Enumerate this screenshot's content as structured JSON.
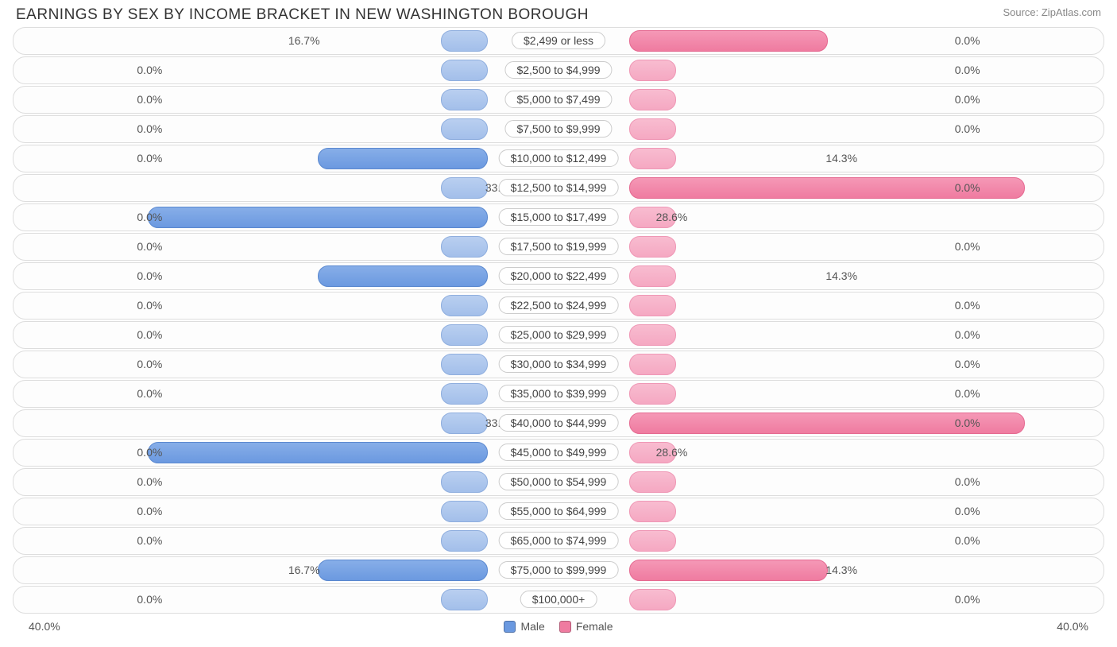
{
  "header": {
    "title": "EARNINGS BY SEX BY INCOME BRACKET IN NEW WASHINGTON BOROUGH",
    "source": "Source: ZipAtlas.com"
  },
  "chart": {
    "type": "diverging-bar",
    "axis_max_pct": 40.0,
    "axis_left_label": "40.0%",
    "axis_right_label": "40.0%",
    "center_offset_pct": 6.5,
    "min_bar_pct": 4.3,
    "colors": {
      "male_fill_top": "#87aee8",
      "male_fill_bottom": "#6b99e0",
      "male_border": "#5a88cf",
      "male_min_fill_top": "#b9cff0",
      "male_min_fill_bottom": "#a3bfea",
      "female_fill_top": "#f598b6",
      "female_fill_bottom": "#ef7ba0",
      "female_border": "#e56a91",
      "female_min_fill_top": "#f8bcd0",
      "female_min_fill_bottom": "#f5a8c2",
      "row_border": "#dddddd",
      "row_bg": "#fdfdfd",
      "text": "#555555",
      "label_border": "#cccccc"
    },
    "legend": {
      "male": "Male",
      "female": "Female"
    },
    "rows": [
      {
        "category": "$2,499 or less",
        "male_pct": 0.0,
        "female_pct": 16.7,
        "male_label": "0.0%",
        "female_label": "16.7%"
      },
      {
        "category": "$2,500 to $4,999",
        "male_pct": 0.0,
        "female_pct": 0.0,
        "male_label": "0.0%",
        "female_label": "0.0%"
      },
      {
        "category": "$5,000 to $7,499",
        "male_pct": 0.0,
        "female_pct": 0.0,
        "male_label": "0.0%",
        "female_label": "0.0%"
      },
      {
        "category": "$7,500 to $9,999",
        "male_pct": 0.0,
        "female_pct": 0.0,
        "male_label": "0.0%",
        "female_label": "0.0%"
      },
      {
        "category": "$10,000 to $12,499",
        "male_pct": 14.3,
        "female_pct": 0.0,
        "male_label": "14.3%",
        "female_label": "0.0%"
      },
      {
        "category": "$12,500 to $14,999",
        "male_pct": 0.0,
        "female_pct": 33.3,
        "male_label": "0.0%",
        "female_label": "33.3%"
      },
      {
        "category": "$15,000 to $17,499",
        "male_pct": 28.6,
        "female_pct": 0.0,
        "male_label": "28.6%",
        "female_label": "0.0%"
      },
      {
        "category": "$17,500 to $19,999",
        "male_pct": 0.0,
        "female_pct": 0.0,
        "male_label": "0.0%",
        "female_label": "0.0%"
      },
      {
        "category": "$20,000 to $22,499",
        "male_pct": 14.3,
        "female_pct": 0.0,
        "male_label": "14.3%",
        "female_label": "0.0%"
      },
      {
        "category": "$22,500 to $24,999",
        "male_pct": 0.0,
        "female_pct": 0.0,
        "male_label": "0.0%",
        "female_label": "0.0%"
      },
      {
        "category": "$25,000 to $29,999",
        "male_pct": 0.0,
        "female_pct": 0.0,
        "male_label": "0.0%",
        "female_label": "0.0%"
      },
      {
        "category": "$30,000 to $34,999",
        "male_pct": 0.0,
        "female_pct": 0.0,
        "male_label": "0.0%",
        "female_label": "0.0%"
      },
      {
        "category": "$35,000 to $39,999",
        "male_pct": 0.0,
        "female_pct": 0.0,
        "male_label": "0.0%",
        "female_label": "0.0%"
      },
      {
        "category": "$40,000 to $44,999",
        "male_pct": 0.0,
        "female_pct": 33.3,
        "male_label": "0.0%",
        "female_label": "33.3%"
      },
      {
        "category": "$45,000 to $49,999",
        "male_pct": 28.6,
        "female_pct": 0.0,
        "male_label": "28.6%",
        "female_label": "0.0%"
      },
      {
        "category": "$50,000 to $54,999",
        "male_pct": 0.0,
        "female_pct": 0.0,
        "male_label": "0.0%",
        "female_label": "0.0%"
      },
      {
        "category": "$55,000 to $64,999",
        "male_pct": 0.0,
        "female_pct": 0.0,
        "male_label": "0.0%",
        "female_label": "0.0%"
      },
      {
        "category": "$65,000 to $74,999",
        "male_pct": 0.0,
        "female_pct": 0.0,
        "male_label": "0.0%",
        "female_label": "0.0%"
      },
      {
        "category": "$75,000 to $99,999",
        "male_pct": 14.3,
        "female_pct": 16.7,
        "male_label": "14.3%",
        "female_label": "16.7%"
      },
      {
        "category": "$100,000+",
        "male_pct": 0.0,
        "female_pct": 0.0,
        "male_label": "0.0%",
        "female_label": "0.0%"
      }
    ]
  }
}
